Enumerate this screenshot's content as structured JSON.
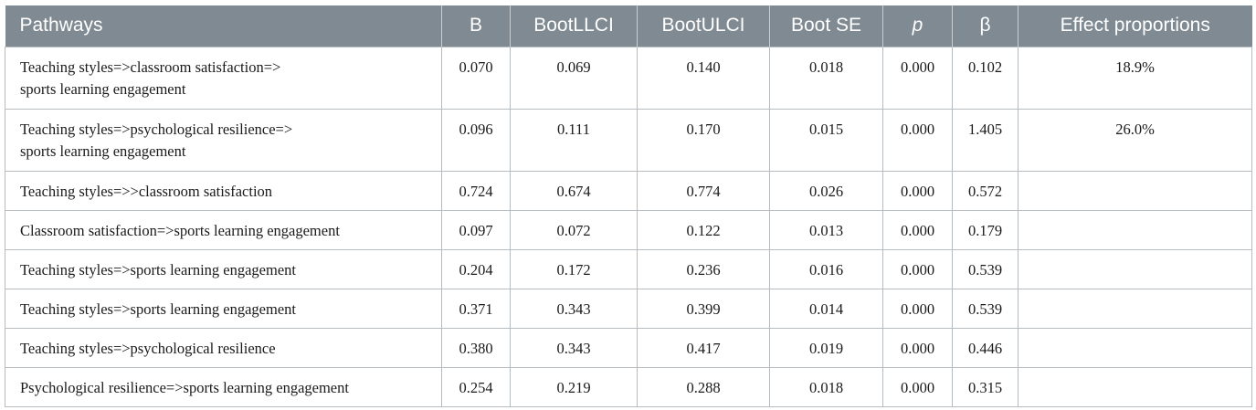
{
  "table": {
    "headers": [
      "Pathways",
      "B",
      "BootLLCI",
      "BootULCI",
      "Boot SE",
      "p",
      "β",
      "Effect proportions"
    ],
    "rows": [
      {
        "pathway": [
          "Teaching styles=>classroom satisfaction=>",
          "sports learning engagement"
        ],
        "B": "0.070",
        "BootLLCI": "0.069",
        "BootULCI": "0.140",
        "BootSE": "0.018",
        "p": "0.000",
        "beta": "0.102",
        "effect": "18.9%"
      },
      {
        "pathway": [
          "Teaching styles=>psychological resilience=>",
          "sports learning engagement"
        ],
        "B": "0.096",
        "BootLLCI": "0.111",
        "BootULCI": "0.170",
        "BootSE": "0.015",
        "p": "0.000",
        "beta": "1.405",
        "effect": "26.0%"
      },
      {
        "pathway": [
          "Teaching styles=>>classroom satisfaction"
        ],
        "B": "0.724",
        "BootLLCI": "0.674",
        "BootULCI": "0.774",
        "BootSE": "0.026",
        "p": "0.000",
        "beta": "0.572",
        "effect": ""
      },
      {
        "pathway": [
          "Classroom satisfaction=>sports learning engagement"
        ],
        "B": "0.097",
        "BootLLCI": "0.072",
        "BootULCI": "0.122",
        "BootSE": "0.013",
        "p": "0.000",
        "beta": "0.179",
        "effect": ""
      },
      {
        "pathway": [
          "Teaching styles=>sports learning engagement"
        ],
        "B": "0.204",
        "BootLLCI": "0.172",
        "BootULCI": "0.236",
        "BootSE": "0.016",
        "p": "0.000",
        "beta": "0.539",
        "effect": ""
      },
      {
        "pathway": [
          "Teaching styles=>sports learning engagement"
        ],
        "B": "0.371",
        "BootLLCI": "0.343",
        "BootULCI": "0.399",
        "BootSE": "0.014",
        "p": "0.000",
        "beta": "0.539",
        "effect": ""
      },
      {
        "pathway": [
          "Teaching styles=>psychological resilience"
        ],
        "B": "0.380",
        "BootLLCI": "0.343",
        "BootULCI": "0.417",
        "BootSE": "0.019",
        "p": "0.000",
        "beta": "0.446",
        "effect": ""
      },
      {
        "pathway": [
          "Psychological resilience=>sports learning engagement"
        ],
        "B": "0.254",
        "BootLLCI": "0.219",
        "BootULCI": "0.288",
        "BootSE": "0.018",
        "p": "0.000",
        "beta": "0.315",
        "effect": ""
      }
    ]
  }
}
